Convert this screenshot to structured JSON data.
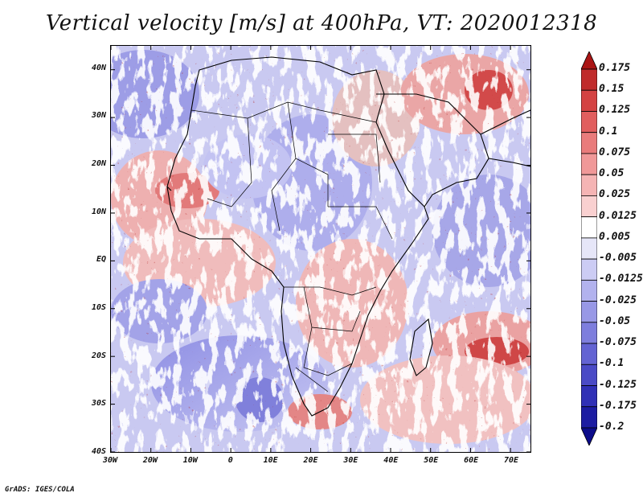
{
  "title": "Vertical velocity [m/s] at 400hPa, VT: 2020012318",
  "credit": "GrADS: IGES/COLA",
  "map": {
    "variable": "Vertical velocity",
    "units": "m/s",
    "level": "400hPa",
    "valid_time": "2020012318",
    "lon_range": [
      -30,
      75
    ],
    "lat_range": [
      -40,
      45
    ],
    "lat_ticks": [
      {
        "value": 40,
        "label": "40N"
      },
      {
        "value": 30,
        "label": "30N"
      },
      {
        "value": 20,
        "label": "20N"
      },
      {
        "value": 10,
        "label": "10N"
      },
      {
        "value": 0,
        "label": "EQ"
      },
      {
        "value": -10,
        "label": "10S"
      },
      {
        "value": -20,
        "label": "20S"
      },
      {
        "value": -30,
        "label": "30S"
      },
      {
        "value": -40,
        "label": "40S"
      }
    ],
    "lon_ticks": [
      {
        "value": -30,
        "label": "30W"
      },
      {
        "value": -20,
        "label": "20W"
      },
      {
        "value": -10,
        "label": "10W"
      },
      {
        "value": 0,
        "label": "0"
      },
      {
        "value": 10,
        "label": "10E"
      },
      {
        "value": 20,
        "label": "20E"
      },
      {
        "value": 30,
        "label": "30E"
      },
      {
        "value": 40,
        "label": "40E"
      },
      {
        "value": 50,
        "label": "50E"
      },
      {
        "value": 60,
        "label": "60E"
      },
      {
        "value": 70,
        "label": "70E"
      }
    ]
  },
  "colorbar": {
    "labels": [
      "0.175",
      "0.15",
      "0.125",
      "0.1",
      "0.075",
      "0.05",
      "0.025",
      "0.0125",
      "0.005",
      "-0.005",
      "-0.0125",
      "-0.025",
      "-0.05",
      "-0.075",
      "-0.1",
      "-0.125",
      "-0.175",
      "-0.2"
    ],
    "colors": [
      "#aa1515",
      "#c02b2b",
      "#d44242",
      "#e15e5e",
      "#e97b7b",
      "#f09898",
      "#f5b4b4",
      "#f9d0d0",
      "#ffffff",
      "#e6e6f8",
      "#ccccf4",
      "#b2b2ee",
      "#9898e6",
      "#7e7edd",
      "#6363d3",
      "#4a4ac6",
      "#3030b6",
      "#1c1ca2",
      "#0c0c8a"
    ]
  },
  "colors": {
    "positive_accent": "#c02b2b",
    "negative_accent": "#3030b6",
    "outline": "#000000"
  }
}
